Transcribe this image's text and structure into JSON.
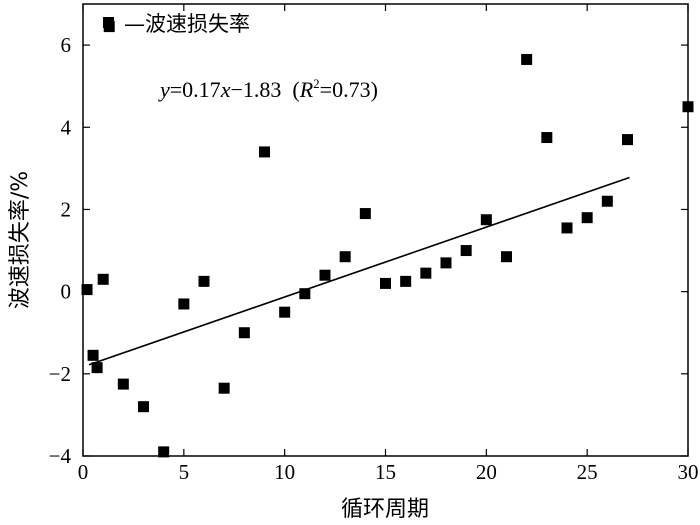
{
  "chart_data": {
    "type": "scatter",
    "xlabel": "循环周期",
    "ylabel": "波速损失率/%",
    "xlim": [
      0,
      30
    ],
    "ylim": [
      -4,
      7
    ],
    "xticks": [
      0,
      5,
      10,
      15,
      20,
      25,
      30
    ],
    "yticks": [
      -4,
      -2,
      0,
      2,
      4,
      6
    ],
    "grid": false,
    "legend": {
      "position": "top-left",
      "label": "—波速损失率"
    },
    "series": [
      {
        "name": "—波速损失率",
        "marker": "square",
        "color": "#000000",
        "points": [
          [
            0.2,
            0.05
          ],
          [
            0.5,
            -1.55
          ],
          [
            0.7,
            -1.85
          ],
          [
            1.0,
            0.3
          ],
          [
            1.3,
            6.45
          ],
          [
            2.0,
            -2.25
          ],
          [
            3.0,
            -2.8
          ],
          [
            4.0,
            -3.9
          ],
          [
            5.0,
            -0.3
          ],
          [
            6.0,
            0.25
          ],
          [
            7.0,
            -2.35
          ],
          [
            8.0,
            -1.0
          ],
          [
            9.0,
            3.4
          ],
          [
            10.0,
            -0.5
          ],
          [
            11.0,
            -0.05
          ],
          [
            12.0,
            0.4
          ],
          [
            13.0,
            0.85
          ],
          [
            14.0,
            1.9
          ],
          [
            15.0,
            0.2
          ],
          [
            16.0,
            0.25
          ],
          [
            17.0,
            0.45
          ],
          [
            18.0,
            0.7
          ],
          [
            19.0,
            1.0
          ],
          [
            20.0,
            1.75
          ],
          [
            21.0,
            0.85
          ],
          [
            22.0,
            5.65
          ],
          [
            23.0,
            3.75
          ],
          [
            24.0,
            1.55
          ],
          [
            25.0,
            1.8
          ],
          [
            26.0,
            2.2
          ],
          [
            27.0,
            3.7
          ],
          [
            30.0,
            4.5
          ]
        ]
      }
    ],
    "fit_line": {
      "slope": 0.17,
      "intercept": -1.83,
      "x_range": [
        0.3,
        27.1
      ]
    },
    "annotation": {
      "y_var": "y",
      "eq_body": "=0.17",
      "x_var": "x",
      "minus": "−1.83",
      "open": "  (",
      "r_var": "R",
      "sup": "2",
      "close": "=0.73)"
    }
  }
}
